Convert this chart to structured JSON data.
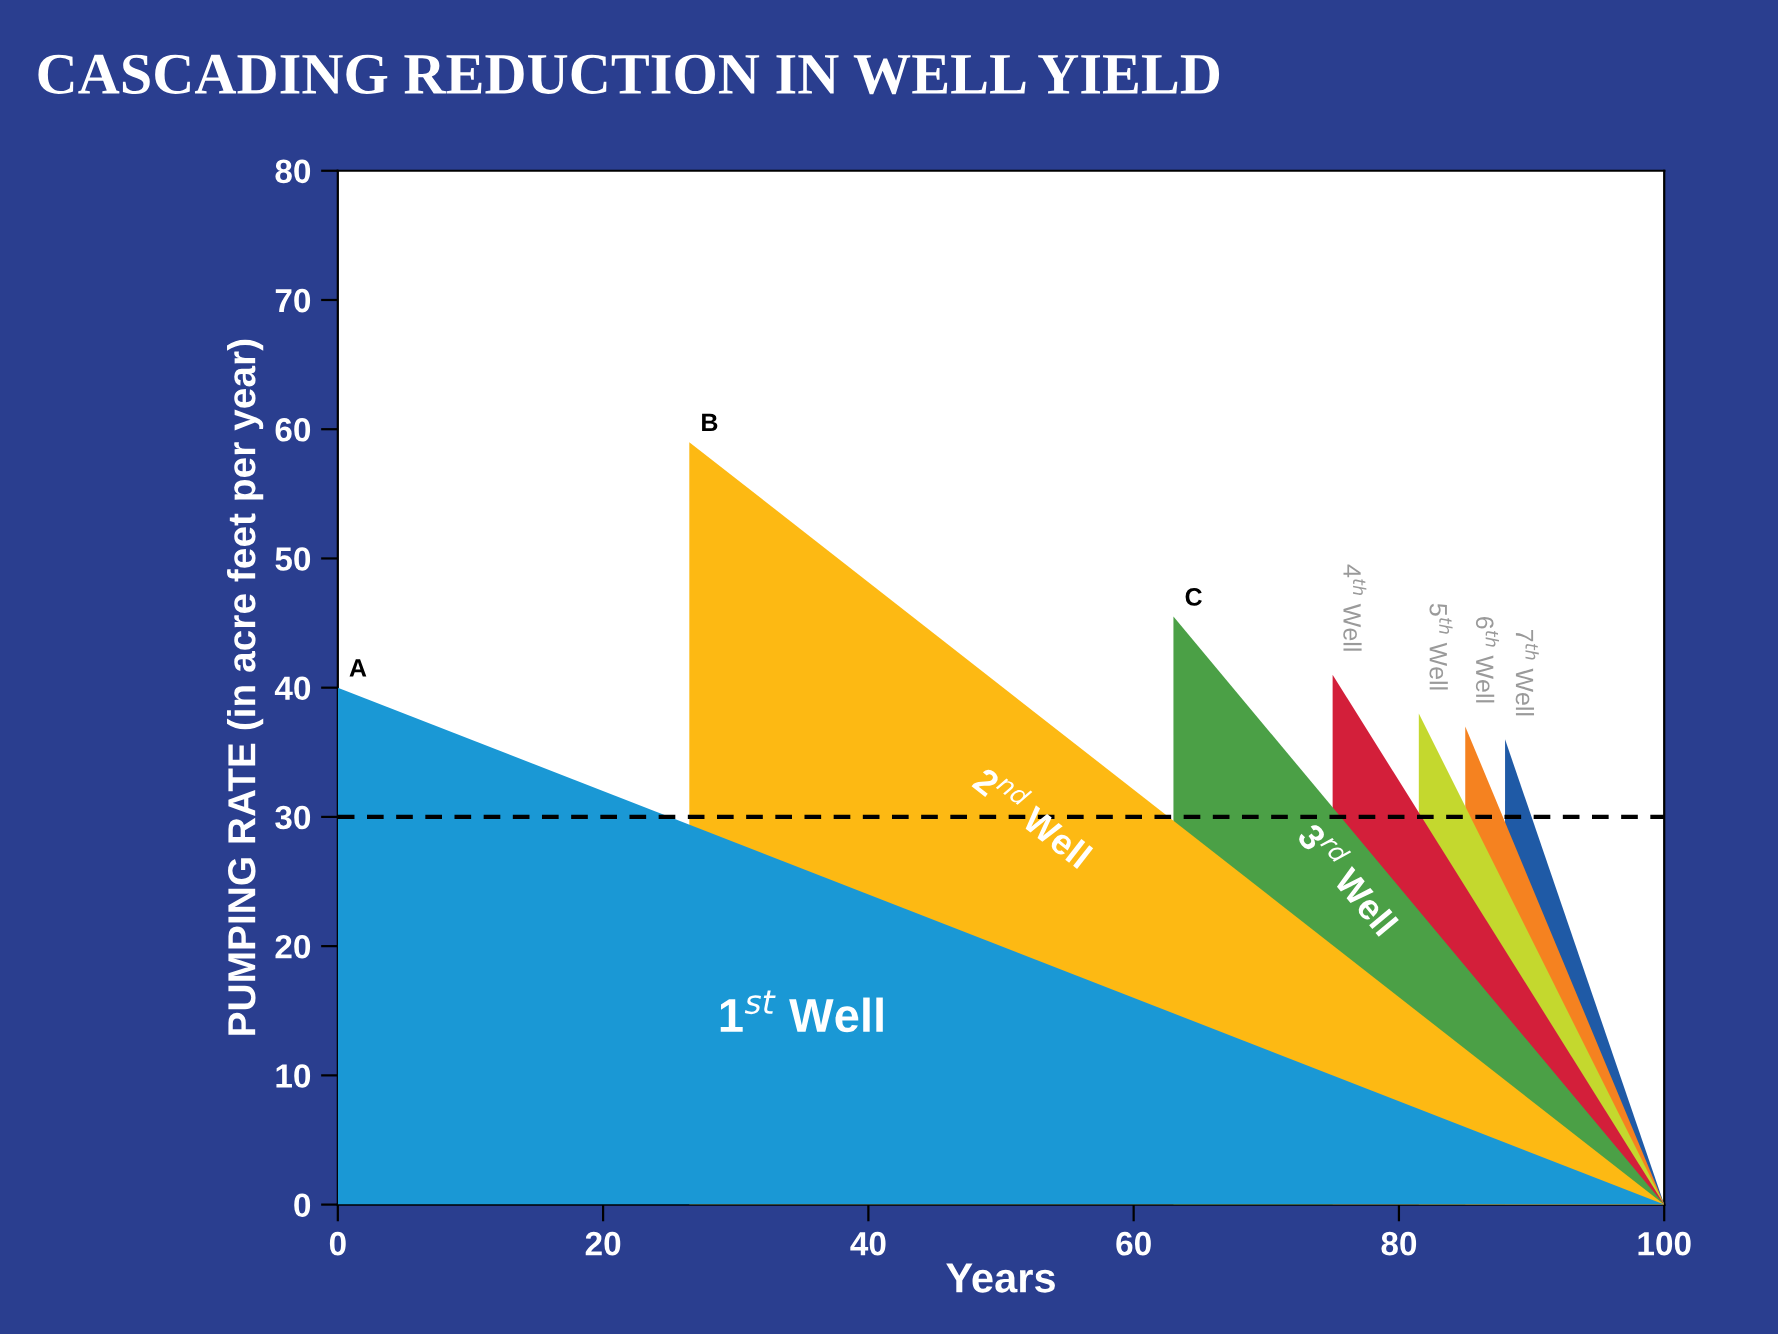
{
  "chart_data": {
    "type": "area",
    "title": "CASCADING REDUCTION IN WELL YIELD",
    "xlabel": "Years",
    "ylabel": "PUMPING RATE (in acre feet per year)",
    "series": [
      {
        "name": "1$^{st}$ Well",
        "color": "#1a98d5",
        "x": [
          0,
          100
        ],
        "values": [
          40,
          0
        ]
      },
      {
        "name": "2$^{nd}$ Well",
        "color": "#fdb913",
        "x": [
          26.5,
          100
        ],
        "values": [
          59,
          0
        ]
      },
      {
        "name": "3$^{rd}$ Well",
        "color": "#4ba046",
        "x": [
          63,
          100
        ],
        "values": [
          45.5,
          0
        ]
      },
      {
        "name": "4$^{th}$ Well",
        "color": "#d31f3a",
        "x": [
          75,
          100
        ],
        "values": [
          41,
          0
        ]
      },
      {
        "name": "5$^{th}$ Well",
        "color": "#c4d82e",
        "x": [
          81.5,
          100
        ],
        "values": [
          38,
          0
        ]
      },
      {
        "name": "6$^{th}$ Well",
        "color": "#f58220",
        "x": [
          85,
          100
        ],
        "values": [
          37,
          0
        ]
      },
      {
        "name": "7$^{th}$ Well",
        "color": "#1f5aa6",
        "x": [
          88,
          100
        ],
        "values": [
          36,
          0
        ]
      }
    ],
    "annotations": [
      {
        "text": "A",
        "x": 0,
        "y": 40
      },
      {
        "text": "B",
        "x": 26.5,
        "y": 59
      },
      {
        "text": "C",
        "x": 63,
        "y": 45.5
      }
    ],
    "ref_lines": [
      {
        "axis": "y",
        "value": 30,
        "color": "#000000",
        "line_style": "dashed"
      }
    ],
    "xlim": [
      0,
      100
    ],
    "ylim": [
      0,
      80
    ],
    "xticks": [
      0,
      20,
      40,
      60,
      80,
      100
    ],
    "yticks": [
      0,
      10,
      20,
      30,
      40,
      50,
      60,
      70,
      80
    ],
    "grid": false
  }
}
